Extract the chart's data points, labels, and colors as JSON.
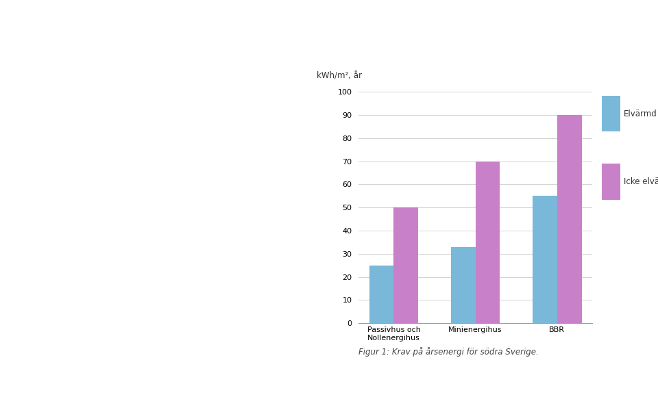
{
  "title": "kWh/m², år",
  "categories": [
    "Passivhus och\nNollenergihus",
    "Minienergihus",
    "BBR"
  ],
  "elvarmd_values": [
    25,
    33,
    55
  ],
  "icke_values": [
    50,
    70,
    90
  ],
  "bar_color_elvarmd": "#7ab8d9",
  "bar_color_icke": "#c880c8",
  "legend_elvarmd": "Elvärmd",
  "legend_icke": "Icke elvärmd",
  "ylim": [
    0,
    100
  ],
  "yticks": [
    0,
    10,
    20,
    30,
    40,
    50,
    60,
    70,
    80,
    90,
    100
  ],
  "figcaption": "Figur 1: Krav på årsenergi för södra Sverige.",
  "background_color": "#ffffff",
  "bar_width": 0.3
}
